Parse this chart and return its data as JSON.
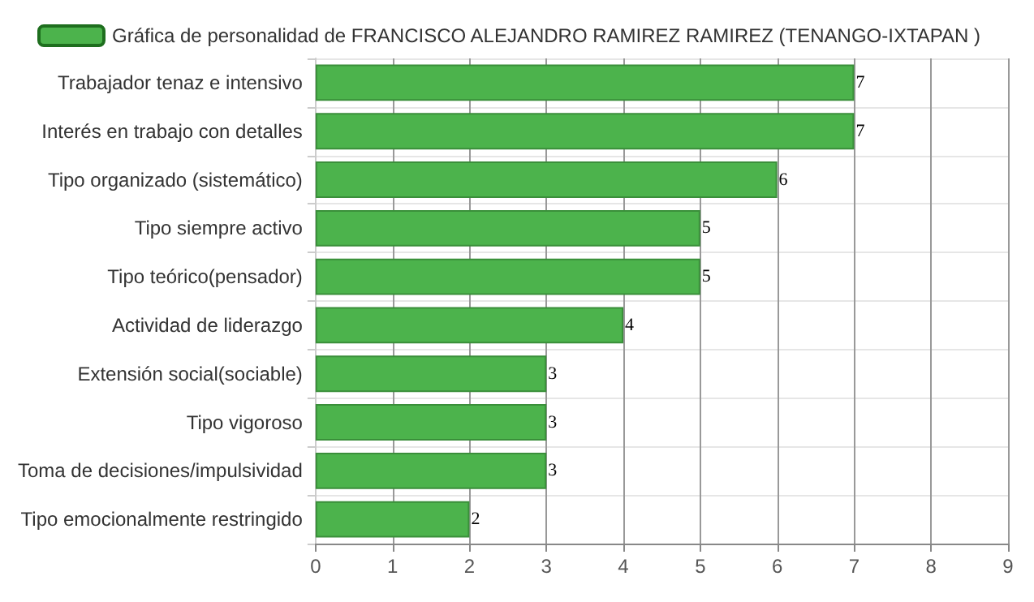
{
  "chart_data": {
    "type": "bar",
    "orientation": "horizontal",
    "categories": [
      "Trabajador tenaz e intensivo",
      "Interés en trabajo con detalles",
      "Tipo organizado (sistemático)",
      "Tipo siempre activo",
      "Tipo teórico(pensador)",
      "Actividad de liderazgo",
      "Extensión social(sociable)",
      "Tipo vigoroso",
      "Toma de decisiones/impulsividad",
      "Tipo emocionalmente restringido"
    ],
    "series": [
      {
        "name": "Gráfica de personalidad de FRANCISCO ALEJANDRO RAMIREZ RAMIREZ (TENANGO-IXTAPAN )",
        "color": "#4cb34c",
        "values": [
          7,
          7,
          6,
          5,
          5,
          4,
          3,
          3,
          3,
          2
        ]
      }
    ],
    "xlim": [
      0,
      9
    ],
    "xticks": [
      0,
      1,
      2,
      3,
      4,
      5,
      6,
      7,
      8,
      9
    ],
    "grid": true,
    "legend": "top",
    "data_labels": true
  }
}
